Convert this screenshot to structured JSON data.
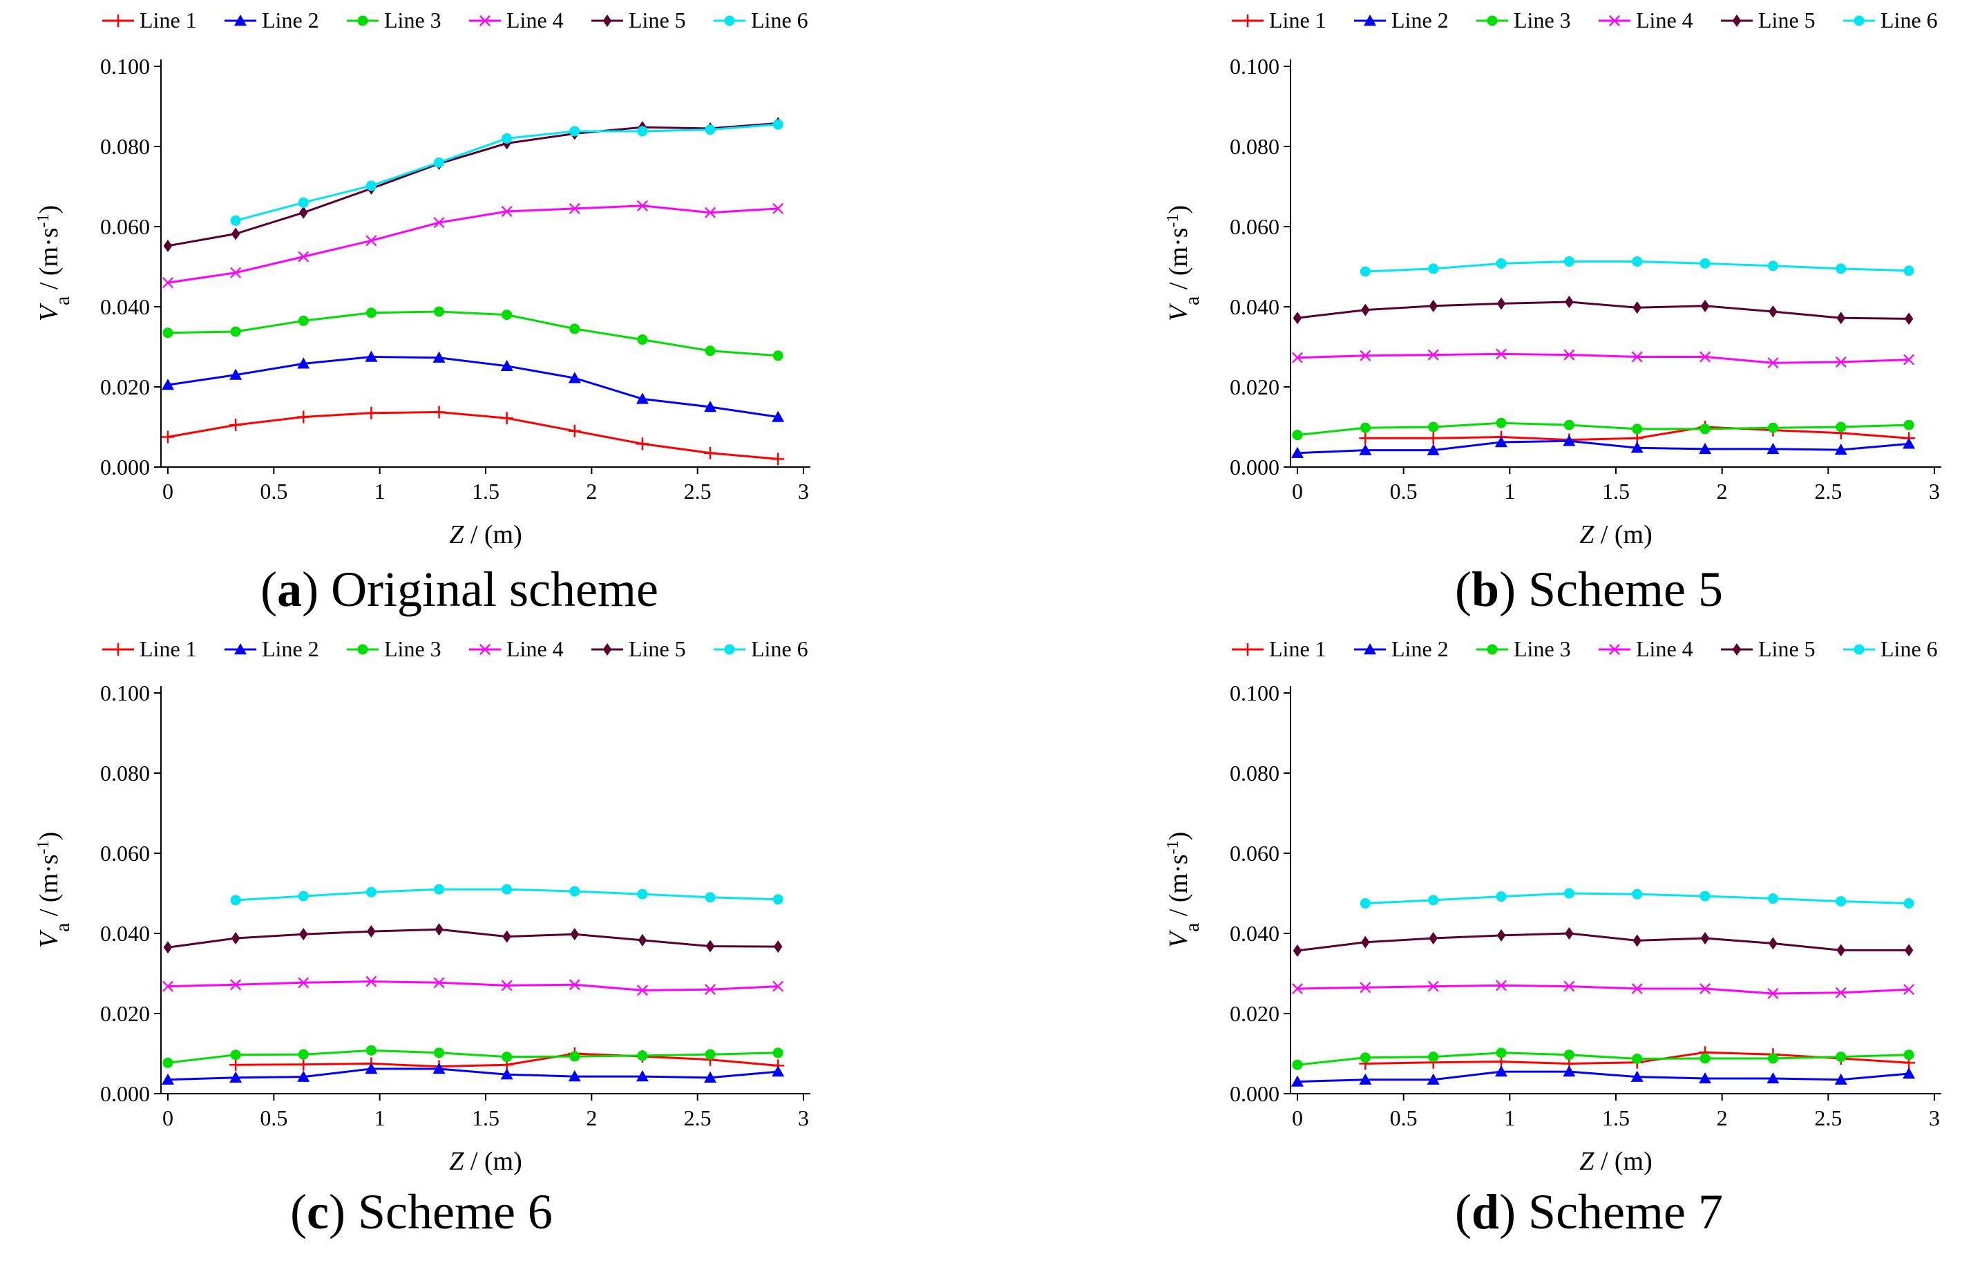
{
  "series_colors": [
    "#ff0000",
    "#0000ff",
    "#00dd00",
    "#ff00ff",
    "#5a0030",
    "#00e5f0"
  ],
  "series_markers": [
    "plus",
    "triangle",
    "circle",
    "cross",
    "diamond",
    "circle"
  ],
  "chart_data": [
    {
      "type": "line",
      "caption_letter": "a",
      "caption_text": " Original scheme",
      "xlabel_main": "Z",
      "xlabel_unit": " / (m)",
      "ylabel_main": "V",
      "ylabel_sub": "a",
      "ylabel_unit_pre": " / (m·s",
      "ylabel_unit_sup": "-1",
      "ylabel_unit_post": ")",
      "xlim": [
        0,
        3
      ],
      "ylim": [
        0,
        0.1
      ],
      "xticks": [
        "0",
        "0.5",
        "1",
        "1.5",
        "2",
        "2.5",
        "3"
      ],
      "yticks": [
        "0.000",
        "0.020",
        "0.040",
        "0.060",
        "0.080",
        "0.100"
      ],
      "legend": "top",
      "series": [
        {
          "name": "Line 1",
          "x": [
            0,
            0.32,
            0.64,
            0.96,
            1.28,
            1.6,
            1.92,
            2.24,
            2.56,
            2.88
          ],
          "y": [
            0.0075,
            0.0105,
            0.0125,
            0.0135,
            0.0137,
            0.0122,
            0.009,
            0.0058,
            0.0035,
            0.002
          ]
        },
        {
          "name": "Line 2",
          "x": [
            0,
            0.32,
            0.64,
            0.96,
            1.28,
            1.6,
            1.92,
            2.24,
            2.56,
            2.88
          ],
          "y": [
            0.0205,
            0.023,
            0.0258,
            0.0275,
            0.0273,
            0.0252,
            0.0222,
            0.017,
            0.015,
            0.0125
          ]
        },
        {
          "name": "Line 3",
          "x": [
            0,
            0.32,
            0.64,
            0.96,
            1.28,
            1.6,
            1.92,
            2.24,
            2.56,
            2.88
          ],
          "y": [
            0.0335,
            0.0338,
            0.0365,
            0.0385,
            0.0388,
            0.038,
            0.0345,
            0.0318,
            0.029,
            0.0278
          ]
        },
        {
          "name": "Line 4",
          "x": [
            0,
            0.32,
            0.64,
            0.96,
            1.28,
            1.6,
            1.92,
            2.24,
            2.56,
            2.88
          ],
          "y": [
            0.046,
            0.0485,
            0.0525,
            0.0565,
            0.061,
            0.0638,
            0.0645,
            0.0652,
            0.0635,
            0.0645
          ]
        },
        {
          "name": "Line 5",
          "x": [
            0,
            0.32,
            0.64,
            0.96,
            1.28,
            1.6,
            1.92,
            2.24,
            2.56,
            2.88
          ],
          "y": [
            0.0552,
            0.0582,
            0.0635,
            0.0695,
            0.0757,
            0.0808,
            0.0832,
            0.0848,
            0.0845,
            0.0858
          ]
        },
        {
          "name": "Line 6",
          "x": [
            0.32,
            0.64,
            0.96,
            1.28,
            1.6,
            1.92,
            2.24,
            2.56,
            2.88
          ],
          "y": [
            0.0615,
            0.066,
            0.0702,
            0.076,
            0.082,
            0.0838,
            0.0838,
            0.0842,
            0.0855
          ]
        }
      ]
    },
    {
      "type": "line",
      "caption_letter": "b",
      "caption_text": " Scheme 5",
      "xlabel_main": "Z",
      "xlabel_unit": " / (m)",
      "ylabel_main": "V",
      "ylabel_sub": "a",
      "ylabel_unit_pre": " / (m·s",
      "ylabel_unit_sup": "-1",
      "ylabel_unit_post": ")",
      "xlim": [
        0,
        3
      ],
      "ylim": [
        0,
        0.1
      ],
      "xticks": [
        "0",
        "0.5",
        "1",
        "1.5",
        "2",
        "2.5",
        "3"
      ],
      "yticks": [
        "0.000",
        "0.020",
        "0.040",
        "0.060",
        "0.080",
        "0.100"
      ],
      "legend": "top",
      "series": [
        {
          "name": "Line 1",
          "x": [
            0.32,
            0.64,
            0.96,
            1.28,
            1.6,
            1.92,
            2.24,
            2.56,
            2.88
          ],
          "y": [
            0.0072,
            0.0072,
            0.0075,
            0.0068,
            0.0072,
            0.01,
            0.0092,
            0.0085,
            0.0072
          ]
        },
        {
          "name": "Line 2",
          "x": [
            0,
            0.32,
            0.64,
            0.96,
            1.28,
            1.6,
            1.92,
            2.24,
            2.56,
            2.88
          ],
          "y": [
            0.0035,
            0.0042,
            0.0042,
            0.0062,
            0.0065,
            0.0048,
            0.0045,
            0.0045,
            0.0043,
            0.0058
          ]
        },
        {
          "name": "Line 3",
          "x": [
            0,
            0.32,
            0.64,
            0.96,
            1.28,
            1.6,
            1.92,
            2.24,
            2.56,
            2.88
          ],
          "y": [
            0.008,
            0.0098,
            0.01,
            0.011,
            0.0105,
            0.0095,
            0.0095,
            0.0098,
            0.01,
            0.0105
          ]
        },
        {
          "name": "Line 4",
          "x": [
            0,
            0.32,
            0.64,
            0.96,
            1.28,
            1.6,
            1.92,
            2.24,
            2.56,
            2.88
          ],
          "y": [
            0.0273,
            0.0278,
            0.028,
            0.0282,
            0.028,
            0.0275,
            0.0275,
            0.026,
            0.0262,
            0.0268
          ]
        },
        {
          "name": "Line 5",
          "x": [
            0,
            0.32,
            0.64,
            0.96,
            1.28,
            1.6,
            1.92,
            2.24,
            2.56,
            2.88
          ],
          "y": [
            0.0372,
            0.0392,
            0.0402,
            0.0408,
            0.0412,
            0.0398,
            0.0402,
            0.0388,
            0.0372,
            0.037
          ]
        },
        {
          "name": "Line 6",
          "x": [
            0.32,
            0.64,
            0.96,
            1.28,
            1.6,
            1.92,
            2.24,
            2.56,
            2.88
          ],
          "y": [
            0.0488,
            0.0495,
            0.0508,
            0.0513,
            0.0513,
            0.0508,
            0.0502,
            0.0495,
            0.049
          ]
        }
      ]
    },
    {
      "type": "line",
      "caption_letter": "c",
      "caption_text": " Scheme 6",
      "xlabel_main": "Z",
      "xlabel_unit": " / (m)",
      "ylabel_main": "V",
      "ylabel_sub": "a",
      "ylabel_unit_pre": " / (m·s",
      "ylabel_unit_sup": "-1",
      "ylabel_unit_post": ")",
      "xlim": [
        0,
        3
      ],
      "ylim": [
        0,
        0.1
      ],
      "xticks": [
        "0",
        "0.5",
        "1",
        "1.5",
        "2",
        "2.5",
        "3"
      ],
      "yticks": [
        "0.000",
        "0.020",
        "0.040",
        "0.060",
        "0.080",
        "0.100"
      ],
      "legend": "top",
      "series": [
        {
          "name": "Line 1",
          "x": [
            0.32,
            0.64,
            0.96,
            1.28,
            1.6,
            1.92,
            2.24,
            2.56,
            2.88
          ],
          "y": [
            0.0072,
            0.0073,
            0.0075,
            0.0068,
            0.0072,
            0.01,
            0.0093,
            0.0085,
            0.007
          ]
        },
        {
          "name": "Line 2",
          "x": [
            0,
            0.32,
            0.64,
            0.96,
            1.28,
            1.6,
            1.92,
            2.24,
            2.56,
            2.88
          ],
          "y": [
            0.0035,
            0.004,
            0.0042,
            0.0062,
            0.0062,
            0.0048,
            0.0043,
            0.0043,
            0.004,
            0.0055
          ]
        },
        {
          "name": "Line 3",
          "x": [
            0,
            0.32,
            0.64,
            0.96,
            1.28,
            1.6,
            1.92,
            2.24,
            2.56,
            2.88
          ],
          "y": [
            0.0077,
            0.0097,
            0.0098,
            0.0108,
            0.0102,
            0.0092,
            0.0093,
            0.0095,
            0.0098,
            0.0102
          ]
        },
        {
          "name": "Line 4",
          "x": [
            0,
            0.32,
            0.64,
            0.96,
            1.28,
            1.6,
            1.92,
            2.24,
            2.56,
            2.88
          ],
          "y": [
            0.0268,
            0.0272,
            0.0277,
            0.028,
            0.0277,
            0.027,
            0.0272,
            0.0258,
            0.026,
            0.0268
          ]
        },
        {
          "name": "Line 5",
          "x": [
            0,
            0.32,
            0.64,
            0.96,
            1.28,
            1.6,
            1.92,
            2.24,
            2.56,
            2.88
          ],
          "y": [
            0.0365,
            0.0388,
            0.0398,
            0.0405,
            0.041,
            0.0392,
            0.0398,
            0.0383,
            0.0368,
            0.0367
          ]
        },
        {
          "name": "Line 6",
          "x": [
            0.32,
            0.64,
            0.96,
            1.28,
            1.6,
            1.92,
            2.24,
            2.56,
            2.88
          ],
          "y": [
            0.0483,
            0.0493,
            0.0503,
            0.051,
            0.051,
            0.0505,
            0.0498,
            0.049,
            0.0485
          ]
        }
      ]
    },
    {
      "type": "line",
      "caption_letter": "d",
      "caption_text": " Scheme 7",
      "xlabel_main": "Z",
      "xlabel_unit": " / (m)",
      "ylabel_main": "V",
      "ylabel_sub": "a",
      "ylabel_unit_pre": " / (m·s",
      "ylabel_unit_sup": "-1",
      "ylabel_unit_post": ")",
      "xlim": [
        0,
        3
      ],
      "ylim": [
        0,
        0.1
      ],
      "xticks": [
        "0",
        "0.5",
        "1",
        "1.5",
        "2",
        "2.5",
        "3"
      ],
      "yticks": [
        "0.000",
        "0.020",
        "0.040",
        "0.060",
        "0.080",
        "0.100"
      ],
      "legend": "top",
      "series": [
        {
          "name": "Line 1",
          "x": [
            0.32,
            0.64,
            0.96,
            1.28,
            1.6,
            1.92,
            2.24,
            2.56,
            2.88
          ],
          "y": [
            0.0075,
            0.0078,
            0.008,
            0.0075,
            0.0078,
            0.0103,
            0.0098,
            0.0088,
            0.0077
          ]
        },
        {
          "name": "Line 2",
          "x": [
            0,
            0.32,
            0.64,
            0.96,
            1.28,
            1.6,
            1.92,
            2.24,
            2.56,
            2.88
          ],
          "y": [
            0.003,
            0.0035,
            0.0035,
            0.0055,
            0.0055,
            0.0042,
            0.0038,
            0.0038,
            0.0035,
            0.005
          ]
        },
        {
          "name": "Line 3",
          "x": [
            0,
            0.32,
            0.64,
            0.96,
            1.28,
            1.6,
            1.92,
            2.24,
            2.56,
            2.88
          ],
          "y": [
            0.0072,
            0.009,
            0.0092,
            0.0102,
            0.0097,
            0.0087,
            0.0088,
            0.0088,
            0.0092,
            0.0097
          ]
        },
        {
          "name": "Line 4",
          "x": [
            0,
            0.32,
            0.64,
            0.96,
            1.28,
            1.6,
            1.92,
            2.24,
            2.56,
            2.88
          ],
          "y": [
            0.0262,
            0.0265,
            0.0268,
            0.027,
            0.0268,
            0.0262,
            0.0262,
            0.025,
            0.0252,
            0.026
          ]
        },
        {
          "name": "Line 5",
          "x": [
            0,
            0.32,
            0.64,
            0.96,
            1.28,
            1.6,
            1.92,
            2.24,
            2.56,
            2.88
          ],
          "y": [
            0.0357,
            0.0378,
            0.0388,
            0.0395,
            0.04,
            0.0382,
            0.0388,
            0.0375,
            0.0358,
            0.0358
          ]
        },
        {
          "name": "Line 6",
          "x": [
            0.32,
            0.64,
            0.96,
            1.28,
            1.6,
            1.92,
            2.24,
            2.56,
            2.88
          ],
          "y": [
            0.0475,
            0.0483,
            0.0492,
            0.05,
            0.0498,
            0.0493,
            0.0487,
            0.048,
            0.0475
          ]
        }
      ]
    }
  ]
}
